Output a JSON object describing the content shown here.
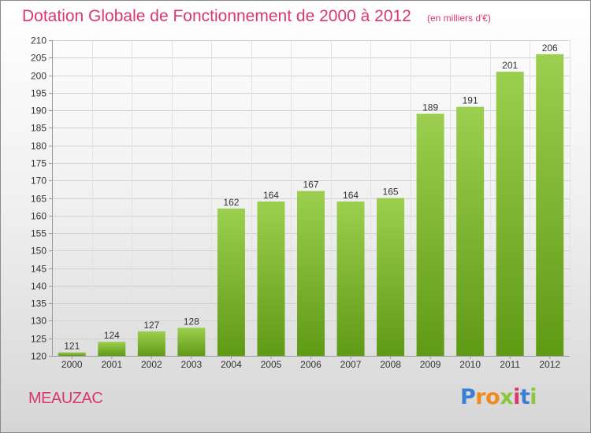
{
  "title": "Dotation Globale de Fonctionnement de 2000 à 2012",
  "subtitle": "(en milliers d'€)",
  "commune": "MEAUZAC",
  "logo": {
    "letters": [
      "P",
      "r",
      "o",
      "x",
      "i",
      "t",
      "i"
    ],
    "colors": [
      "#3b7fd4",
      "#f08a1c",
      "#f08a1c",
      "#8cc63f",
      "#d8386e",
      "#3b7fd4",
      "#8cc63f"
    ]
  },
  "colors": {
    "accent": "#d8386e",
    "bar_light": "#9ccf4f",
    "bar_dark": "#5f9a15"
  },
  "chart_data": {
    "type": "bar",
    "categories": [
      "2000",
      "2001",
      "2002",
      "2003",
      "2004",
      "2005",
      "2006",
      "2007",
      "2008",
      "2009",
      "2010",
      "2011",
      "2012"
    ],
    "values": [
      121,
      124,
      127,
      128,
      162,
      164,
      167,
      164,
      165,
      189,
      191,
      201,
      206
    ],
    "ylim": [
      120,
      210
    ],
    "yticks": [
      120,
      125,
      130,
      135,
      140,
      145,
      150,
      155,
      160,
      165,
      170,
      175,
      180,
      185,
      190,
      195,
      200,
      205,
      210
    ],
    "grid": true
  }
}
